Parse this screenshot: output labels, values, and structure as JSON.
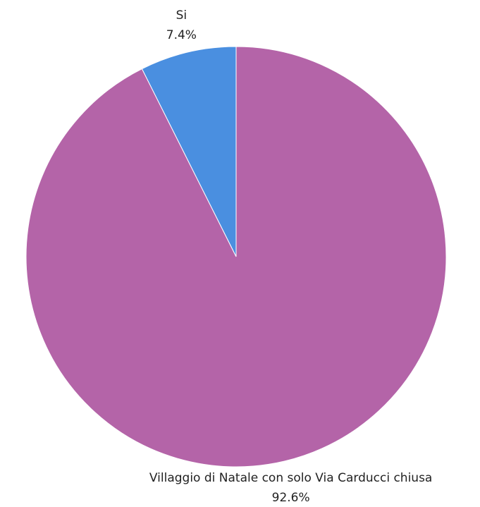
{
  "chart_data": {
    "type": "pie",
    "categories": [
      "Si",
      "Villaggio di Natale con solo Via Carducci chiusa"
    ],
    "values": [
      7.4,
      92.6
    ],
    "value_labels": [
      "7.4%",
      "92.6%"
    ],
    "colors": [
      "#4a8fe0",
      "#b464a8"
    ]
  }
}
